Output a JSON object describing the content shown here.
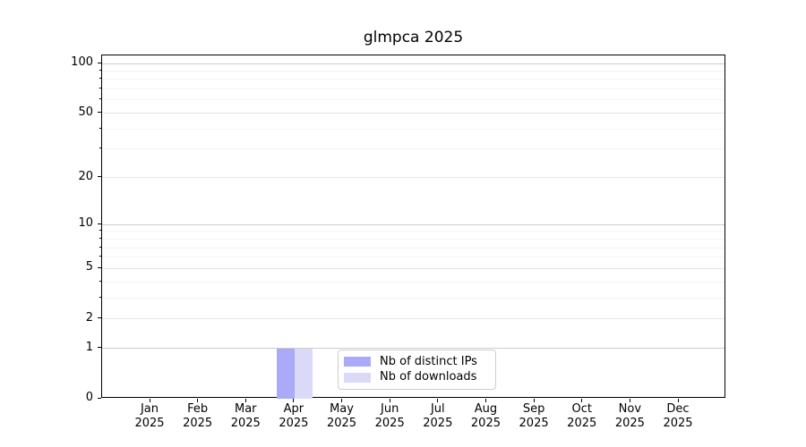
{
  "chart_data": {
    "type": "bar",
    "title": "glmpca 2025",
    "categories": [
      "Jan",
      "Feb",
      "Mar",
      "Apr",
      "May",
      "Jun",
      "Jul",
      "Aug",
      "Sep",
      "Oct",
      "Nov",
      "Dec"
    ],
    "x_year_label": "2025",
    "series": [
      {
        "name": "Nb of distinct IPs",
        "color": "#aaaaf8",
        "values": [
          0,
          0,
          0,
          1,
          0,
          0,
          0,
          0,
          0,
          0,
          0,
          0
        ]
      },
      {
        "name": "Nb of downloads",
        "color": "#dadaf8",
        "values": [
          0,
          0,
          0,
          1,
          0,
          0,
          0,
          0,
          0,
          0,
          0,
          0
        ]
      }
    ],
    "y_scale": "log1p",
    "y_ticks": [
      0,
      1,
      2,
      5,
      10,
      20,
      50,
      100
    ],
    "y_decade_ticks": [
      1,
      10,
      100
    ],
    "y_minor_ticks": [
      3,
      4,
      6,
      7,
      8,
      9,
      30,
      40,
      60,
      70,
      80,
      90
    ],
    "ylim": [
      0,
      110
    ],
    "xlabel": "",
    "ylabel": "",
    "grid": "horizontal",
    "legend_position": "lower center"
  },
  "colors": {
    "bar_distinct_ips": "#aaaaf8",
    "bar_downloads": "#dadaf8",
    "gridline_major": "#cccccc",
    "gridline_mid": "#e7e7e7",
    "gridline_minor": "#f3f3f3",
    "axis": "#000000",
    "legend_border": "#cccccc",
    "text": "#000000"
  }
}
